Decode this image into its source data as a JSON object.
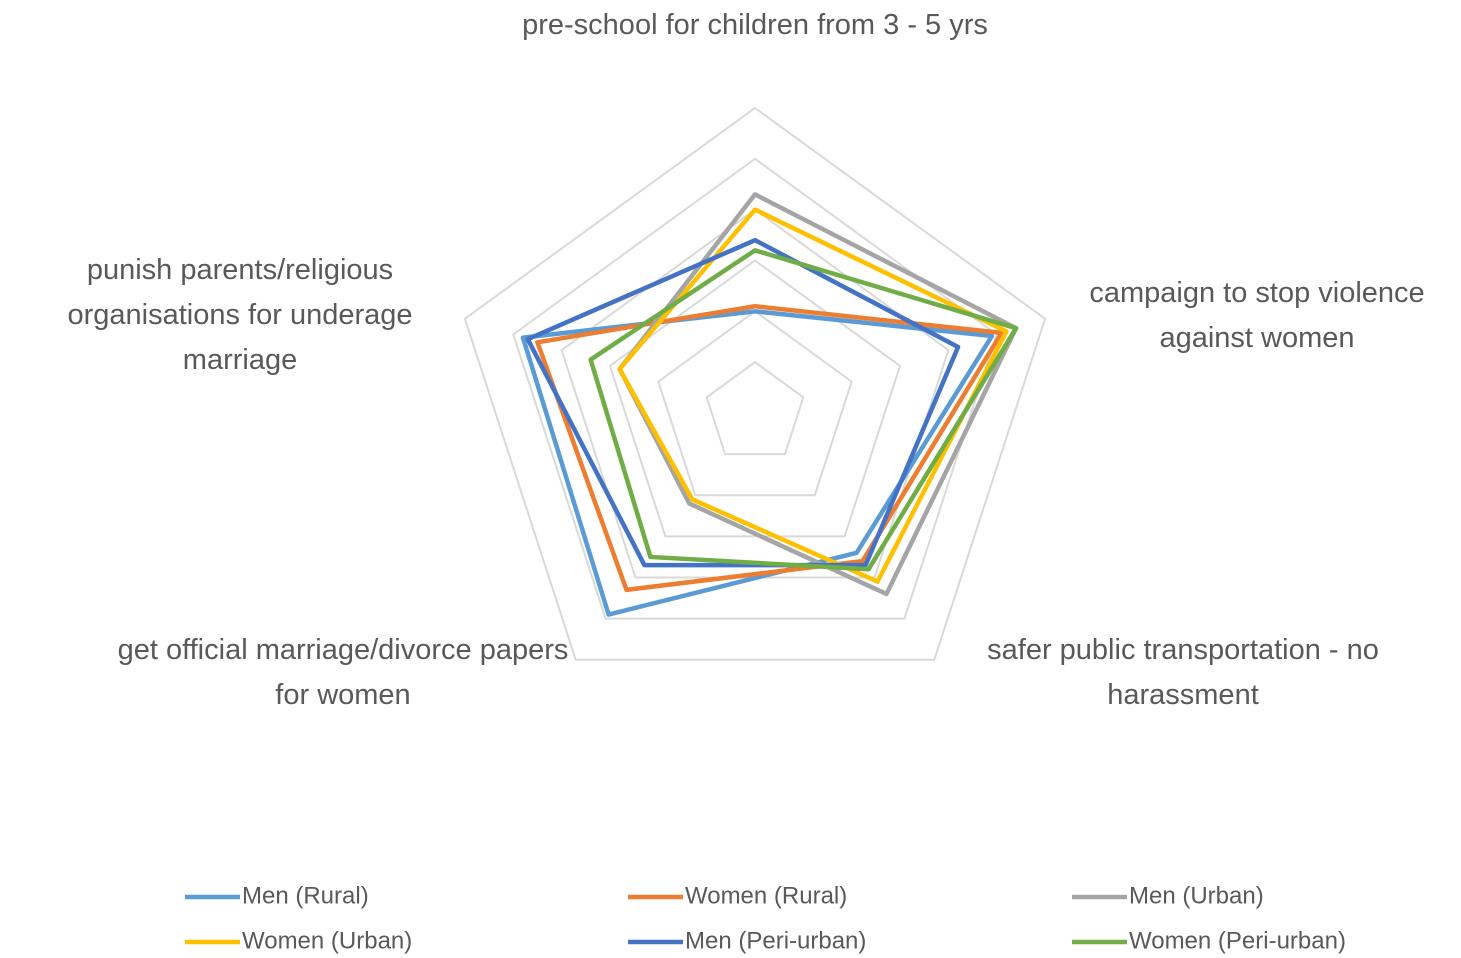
{
  "chart_data": {
    "type": "radar",
    "categories": [
      "pre-school for children from 3 - 5 yrs",
      "campaign to stop violence against women",
      "safer public transportation  - no harassment",
      "get official marriage/divorce papers for women",
      "punish parents/religious organisations for underage marriage"
    ],
    "series": [
      {
        "name": "Men (Rural)",
        "color": "#5b9bd5",
        "values": [
          2.0,
          4.9,
          3.4,
          4.9,
          4.8
        ]
      },
      {
        "name": "Women (Rural)",
        "color": "#ed7d31",
        "values": [
          2.1,
          5.1,
          3.6,
          4.3,
          4.5
        ]
      },
      {
        "name": "Men (Urban)",
        "color": "#a5a5a5",
        "values": [
          4.3,
          5.4,
          4.4,
          2.2,
          2.8
        ]
      },
      {
        "name": "Women (Urban)",
        "color": "#ffc000",
        "values": [
          4.0,
          5.2,
          4.1,
          2.1,
          2.8
        ]
      },
      {
        "name": "Men (Peri-urban)",
        "color": "#4472c4",
        "values": [
          3.4,
          4.2,
          3.7,
          3.7,
          4.7
        ]
      },
      {
        "name": "Women (Peri-urban)",
        "color": "#70ad47",
        "values": [
          3.2,
          5.4,
          3.8,
          3.5,
          3.4
        ]
      }
    ],
    "ylim": [
      0,
      6
    ],
    "yticks": [
      1,
      2,
      3,
      4,
      5,
      6
    ],
    "grid": true,
    "legend": "bottom"
  }
}
